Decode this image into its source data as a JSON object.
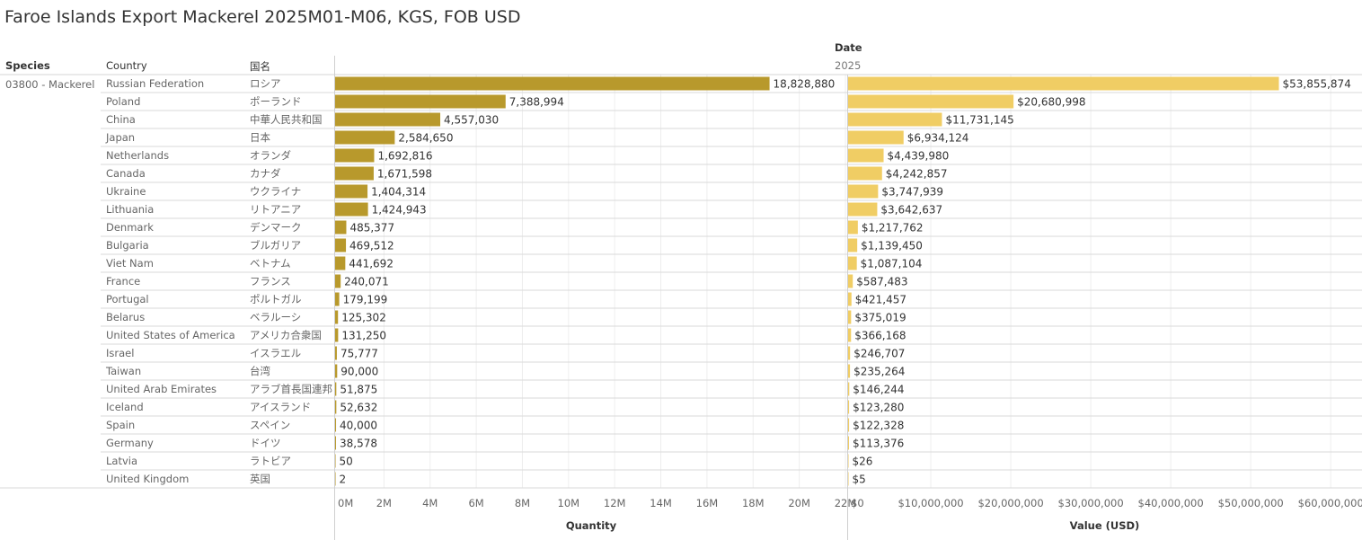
{
  "title": "Faroe Islands Export Mackerel 2025M01-M06, KGS, FOB USD",
  "headers": {
    "species": "Species",
    "country": "Country",
    "jp_name": "国名",
    "date": "Date",
    "year": "2025"
  },
  "species_value": "03800 - Mackerel",
  "colors": {
    "quantity_bar": "#b8992c",
    "value_bar": "#f0cd64"
  },
  "chart_data": [
    {
      "type": "bar",
      "orientation": "horizontal",
      "xlabel": "Quantity",
      "xlim": [
        0,
        22000000
      ],
      "ticks": [
        0,
        2000000,
        4000000,
        6000000,
        8000000,
        10000000,
        12000000,
        14000000,
        16000000,
        18000000,
        20000000,
        22000000
      ],
      "tick_labels": [
        "0M",
        "2M",
        "4M",
        "6M",
        "8M",
        "10M",
        "12M",
        "14M",
        "16M",
        "18M",
        "20M",
        "22M"
      ],
      "grid": true,
      "categories": [
        "Russian Federation",
        "Poland",
        "China",
        "Japan",
        "Netherlands",
        "Canada",
        "Ukraine",
        "Lithuania",
        "Denmark",
        "Bulgaria",
        "Viet Nam",
        "France",
        "Portugal",
        "Belarus",
        "United States of America",
        "Israel",
        "Taiwan",
        "United Arab Emirates",
        "Iceland",
        "Spain",
        "Germany",
        "Latvia",
        "United Kingdom"
      ],
      "categories_jp": [
        "ロシア",
        "ポーランド",
        "中華人民共和国",
        "日本",
        "オランダ",
        "カナダ",
        "ウクライナ",
        "リトアニア",
        "デンマーク",
        "ブルガリア",
        "ベトナム",
        "フランス",
        "ポルトガル",
        "ベラルーシ",
        "アメリカ合衆国",
        "イスラエル",
        "台湾",
        "アラブ首長国連邦",
        "アイスランド",
        "スペイン",
        "ドイツ",
        "ラトビア",
        "英国"
      ],
      "values": [
        18828880,
        7388994,
        4557030,
        2584650,
        1692816,
        1671598,
        1404314,
        1424943,
        485377,
        469512,
        441692,
        240071,
        179199,
        125302,
        131250,
        75777,
        90000,
        51875,
        52632,
        40000,
        38578,
        50,
        2
      ],
      "labels": [
        "18,828,880",
        "7,388,994",
        "4,557,030",
        "2,584,650",
        "1,692,816",
        "1,671,598",
        "1,404,314",
        "1,424,943",
        "485,377",
        "469,512",
        "441,692",
        "240,071",
        "179,199",
        "125,302",
        "131,250",
        "75,777",
        "90,000",
        "51,875",
        "52,632",
        "40,000",
        "38,578",
        "50",
        "2"
      ]
    },
    {
      "type": "bar",
      "orientation": "horizontal",
      "xlabel": "Value (USD)",
      "xlim": [
        0,
        65000000
      ],
      "ticks": [
        0,
        10000000,
        20000000,
        30000000,
        40000000,
        50000000,
        60000000
      ],
      "tick_labels": [
        "$0",
        "$10,000,000",
        "$20,000,000",
        "$30,000,000",
        "$40,000,000",
        "$50,000,000",
        "$60,000,000"
      ],
      "grid": true,
      "values": [
        53855874,
        20680998,
        11731145,
        6934124,
        4439980,
        4242857,
        3747939,
        3642637,
        1217762,
        1139450,
        1087104,
        587483,
        421457,
        375019,
        366168,
        246707,
        235264,
        146244,
        123280,
        122328,
        113376,
        26,
        5
      ],
      "labels": [
        "$53,855,874",
        "$20,680,998",
        "$11,731,145",
        "$6,934,124",
        "$4,439,980",
        "$4,242,857",
        "$3,747,939",
        "$3,642,637",
        "$1,217,762",
        "$1,139,450",
        "$1,087,104",
        "$587,483",
        "$421,457",
        "$375,019",
        "$366,168",
        "$246,707",
        "$235,264",
        "$146,244",
        "$123,280",
        "$122,328",
        "$113,376",
        "$26",
        "$5"
      ]
    }
  ]
}
